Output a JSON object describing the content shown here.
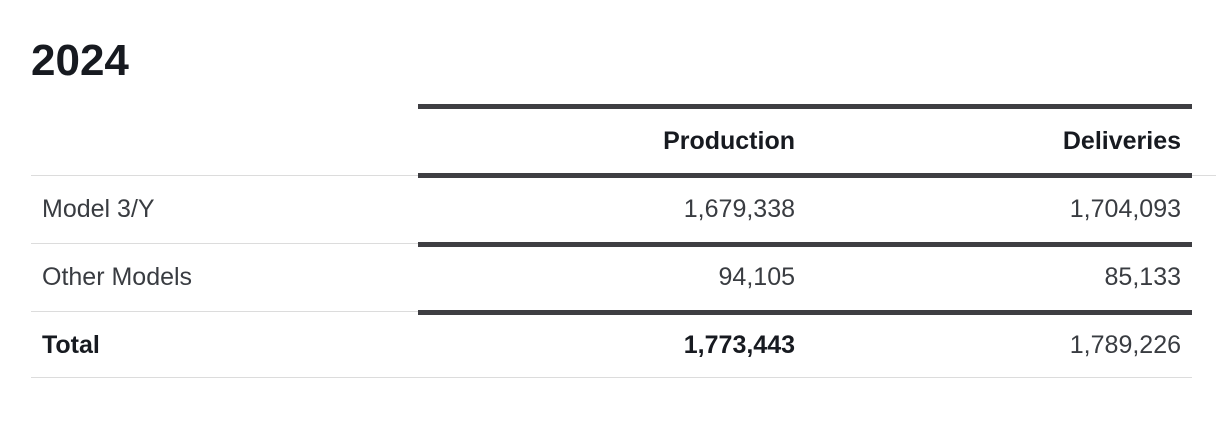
{
  "title": "2024",
  "table": {
    "columns": [
      "Production",
      "Deliveries"
    ],
    "rows": [
      {
        "label": "Model 3/Y",
        "values": [
          "1,679,338",
          "1,704,093"
        ]
      },
      {
        "label": "Other Models",
        "values": [
          "94,105",
          "85,133"
        ]
      },
      {
        "label": "Total",
        "values": [
          "1,773,443",
          "1,789,226"
        ]
      }
    ]
  }
}
